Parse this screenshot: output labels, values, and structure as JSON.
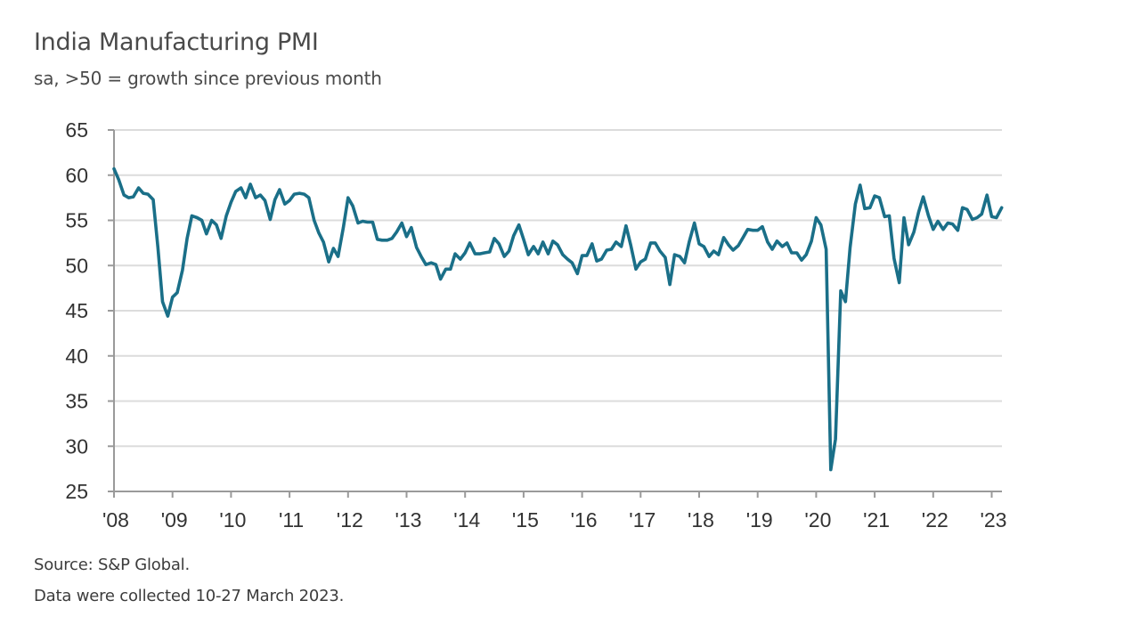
{
  "chart_data": {
    "type": "line",
    "title": "India Manufacturing PMI",
    "subtitle": "sa, >50 = growth since previous month",
    "xlabel": "",
    "ylabel": "",
    "ylim": [
      25,
      65
    ],
    "xlim": [
      2008.0,
      2023.25
    ],
    "yticks": [
      65,
      60,
      55,
      50,
      45,
      40,
      35,
      30,
      25
    ],
    "xtick_labels": [
      "'08",
      "'09",
      "'10",
      "'11",
      "'12",
      "'13",
      "'14",
      "'15",
      "'16",
      "'17",
      "'18",
      "'19",
      "'20",
      "'21",
      "'22",
      "'23"
    ],
    "xtick_years": [
      2008,
      2009,
      2010,
      2011,
      2012,
      2013,
      2014,
      2015,
      2016,
      2017,
      2018,
      2019,
      2020,
      2021,
      2022,
      2023
    ],
    "grid": true,
    "line_color": "#1a6f88",
    "series": [
      {
        "name": "India Manufacturing PMI",
        "x": [
          2008.0,
          2008.08,
          2008.17,
          2008.25,
          2008.33,
          2008.42,
          2008.5,
          2008.58,
          2008.67,
          2008.75,
          2008.83,
          2008.92,
          2009.0,
          2009.08,
          2009.17,
          2009.25,
          2009.33,
          2009.42,
          2009.5,
          2009.58,
          2009.67,
          2009.75,
          2009.83,
          2009.92,
          2010.0,
          2010.08,
          2010.17,
          2010.25,
          2010.33,
          2010.42,
          2010.5,
          2010.58,
          2010.67,
          2010.75,
          2010.83,
          2010.92,
          2011.0,
          2011.08,
          2011.17,
          2011.25,
          2011.33,
          2011.42,
          2011.5,
          2011.58,
          2011.67,
          2011.75,
          2011.83,
          2011.92,
          2012.0,
          2012.08,
          2012.17,
          2012.25,
          2012.33,
          2012.42,
          2012.5,
          2012.58,
          2012.67,
          2012.75,
          2012.83,
          2012.92,
          2013.0,
          2013.08,
          2013.17,
          2013.25,
          2013.33,
          2013.42,
          2013.5,
          2013.58,
          2013.67,
          2013.75,
          2013.83,
          2013.92,
          2014.0,
          2014.08,
          2014.17,
          2014.25,
          2014.33,
          2014.42,
          2014.5,
          2014.58,
          2014.67,
          2014.75,
          2014.83,
          2014.92,
          2015.0,
          2015.08,
          2015.17,
          2015.25,
          2015.33,
          2015.42,
          2015.5,
          2015.58,
          2015.67,
          2015.75,
          2015.83,
          2015.92,
          2016.0,
          2016.08,
          2016.17,
          2016.25,
          2016.33,
          2016.42,
          2016.5,
          2016.58,
          2016.67,
          2016.75,
          2016.83,
          2016.92,
          2017.0,
          2017.08,
          2017.17,
          2017.25,
          2017.33,
          2017.42,
          2017.5,
          2017.58,
          2017.67,
          2017.75,
          2017.83,
          2017.92,
          2018.0,
          2018.08,
          2018.17,
          2018.25,
          2018.33,
          2018.42,
          2018.5,
          2018.58,
          2018.67,
          2018.75,
          2018.83,
          2018.92,
          2019.0,
          2019.08,
          2019.17,
          2019.25,
          2019.33,
          2019.42,
          2019.5,
          2019.58,
          2019.67,
          2019.75,
          2019.83,
          2019.92,
          2020.0,
          2020.08,
          2020.17,
          2020.25,
          2020.33,
          2020.42,
          2020.5,
          2020.58,
          2020.67,
          2020.75,
          2020.83,
          2020.92,
          2021.0,
          2021.08,
          2021.17,
          2021.25,
          2021.33,
          2021.42,
          2021.5,
          2021.58,
          2021.67,
          2021.75,
          2021.83,
          2021.92,
          2022.0,
          2022.08,
          2022.17,
          2022.25,
          2022.33,
          2022.42,
          2022.5,
          2022.58,
          2022.67,
          2022.75,
          2022.83,
          2022.92,
          2023.0,
          2023.08,
          2023.17
        ],
        "values": [
          60.7,
          59.5,
          57.8,
          57.5,
          57.6,
          58.6,
          58.0,
          57.9,
          57.3,
          52.0,
          46.0,
          44.4,
          46.5,
          47.0,
          49.5,
          53.0,
          55.5,
          55.3,
          55.0,
          53.5,
          55.0,
          54.5,
          53.0,
          55.5,
          57.0,
          58.2,
          58.6,
          57.5,
          59.0,
          57.5,
          57.8,
          57.2,
          55.1,
          57.3,
          58.4,
          56.8,
          57.2,
          57.9,
          58.0,
          57.9,
          57.5,
          55.0,
          53.6,
          52.6,
          50.4,
          51.9,
          51.0,
          54.2,
          57.5,
          56.6,
          54.7,
          54.9,
          54.8,
          54.8,
          52.9,
          52.8,
          52.8,
          53.0,
          53.7,
          54.7,
          53.2,
          54.2,
          52.0,
          51.0,
          50.1,
          50.3,
          50.1,
          48.5,
          49.6,
          49.6,
          51.3,
          50.7,
          51.4,
          52.5,
          51.3,
          51.3,
          51.4,
          51.5,
          53.0,
          52.4,
          51.0,
          51.6,
          53.3,
          54.5,
          52.9,
          51.2,
          52.1,
          51.3,
          52.6,
          51.3,
          52.7,
          52.3,
          51.2,
          50.7,
          50.3,
          49.1,
          51.1,
          51.1,
          52.4,
          50.5,
          50.7,
          51.7,
          51.8,
          52.6,
          52.1,
          54.4,
          52.3,
          49.6,
          50.4,
          50.7,
          52.5,
          52.5,
          51.6,
          50.9,
          47.9,
          51.2,
          51.0,
          50.3,
          52.6,
          54.7,
          52.4,
          52.1,
          51.0,
          51.6,
          51.2,
          53.1,
          52.3,
          51.7,
          52.2,
          53.1,
          54.0,
          53.9,
          53.9,
          54.3,
          52.6,
          51.8,
          52.7,
          52.1,
          52.5,
          51.4,
          51.4,
          50.6,
          51.2,
          52.7,
          55.3,
          54.5,
          51.8,
          27.4,
          30.8,
          47.2,
          46.0,
          52.0,
          56.8,
          58.9,
          56.3,
          56.4,
          57.7,
          57.5,
          55.4,
          55.5,
          50.8,
          48.1,
          55.3,
          52.3,
          53.7,
          55.9,
          57.6,
          55.5,
          54.0,
          54.9,
          54.0,
          54.7,
          54.6,
          53.9,
          56.4,
          56.2,
          55.1,
          55.3,
          55.7,
          57.8,
          55.4,
          55.3,
          56.4
        ]
      }
    ],
    "annotations": {
      "source": "Source: S&P Global.",
      "collection_note": "Data were collected 10-27 March 2023."
    },
    "legend": "none"
  }
}
